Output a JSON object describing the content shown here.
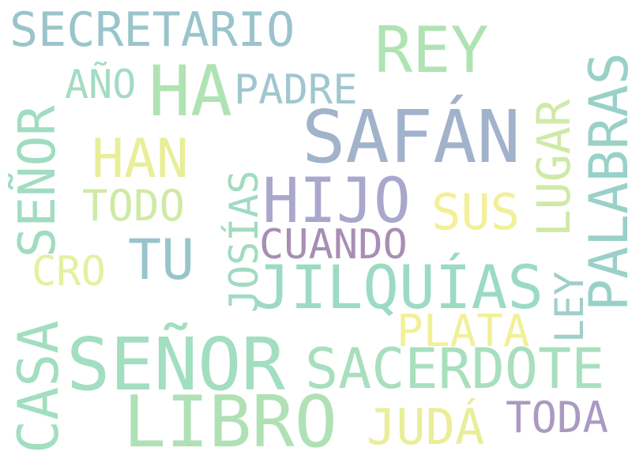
{
  "words": {
    "secretario": {
      "text": "SECRETARIO",
      "color": "#8dbcc4"
    },
    "rey": {
      "text": "REY",
      "color": "#a6e0a9"
    },
    "ano": {
      "text": "AÑO",
      "color": "#96d8bb"
    },
    "ha": {
      "text": "HA",
      "color": "#a6e0a9"
    },
    "padre": {
      "text": "PADRE",
      "color": "#93c0c8"
    },
    "safan": {
      "text": "SAFÁN",
      "color": "#95a8c4"
    },
    "han": {
      "text": "HAN",
      "color": "#e6ec8a"
    },
    "todo": {
      "text": "TODO",
      "color": "#c9e89a"
    },
    "hijo": {
      "text": "HIJO",
      "color": "#9e9cc4"
    },
    "sus": {
      "text": "SUS",
      "color": "#f1ef8a"
    },
    "tu": {
      "text": "TU",
      "color": "#8cbcc4"
    },
    "cuando": {
      "text": "CUANDO",
      "color": "#9c7fa9"
    },
    "cro": {
      "text": "CRO",
      "color": "#e2ee92"
    },
    "jilquias": {
      "text": "JILQUÍAS",
      "color": "#8fd7bb"
    },
    "plata": {
      "text": "PLATA",
      "color": "#f1ef8a"
    },
    "senor_main": {
      "text": "SEÑOR",
      "color": "#96dab8"
    },
    "sacerdote": {
      "text": "SACERDOTE",
      "color": "#9ddbb6"
    },
    "libro": {
      "text": "LIBRO",
      "color": "#a4deab"
    },
    "juda": {
      "text": "JUDÁ",
      "color": "#e6ec8a"
    },
    "toda": {
      "text": "TODA",
      "color": "#9f8db8"
    },
    "senor_vert": {
      "text": "SEÑOR",
      "color": "#93d8b9"
    },
    "casa": {
      "text": "CASA",
      "color": "#96dab8"
    },
    "josias": {
      "text": "JOSÍAS",
      "color": "#94d7ba"
    },
    "lugar": {
      "text": "LUGAR",
      "color": "#c9e89a"
    },
    "palabras": {
      "text": "PALABRAS",
      "color": "#8ccbc2"
    },
    "ley": {
      "text": "LEY",
      "color": "#93c8c4"
    }
  }
}
